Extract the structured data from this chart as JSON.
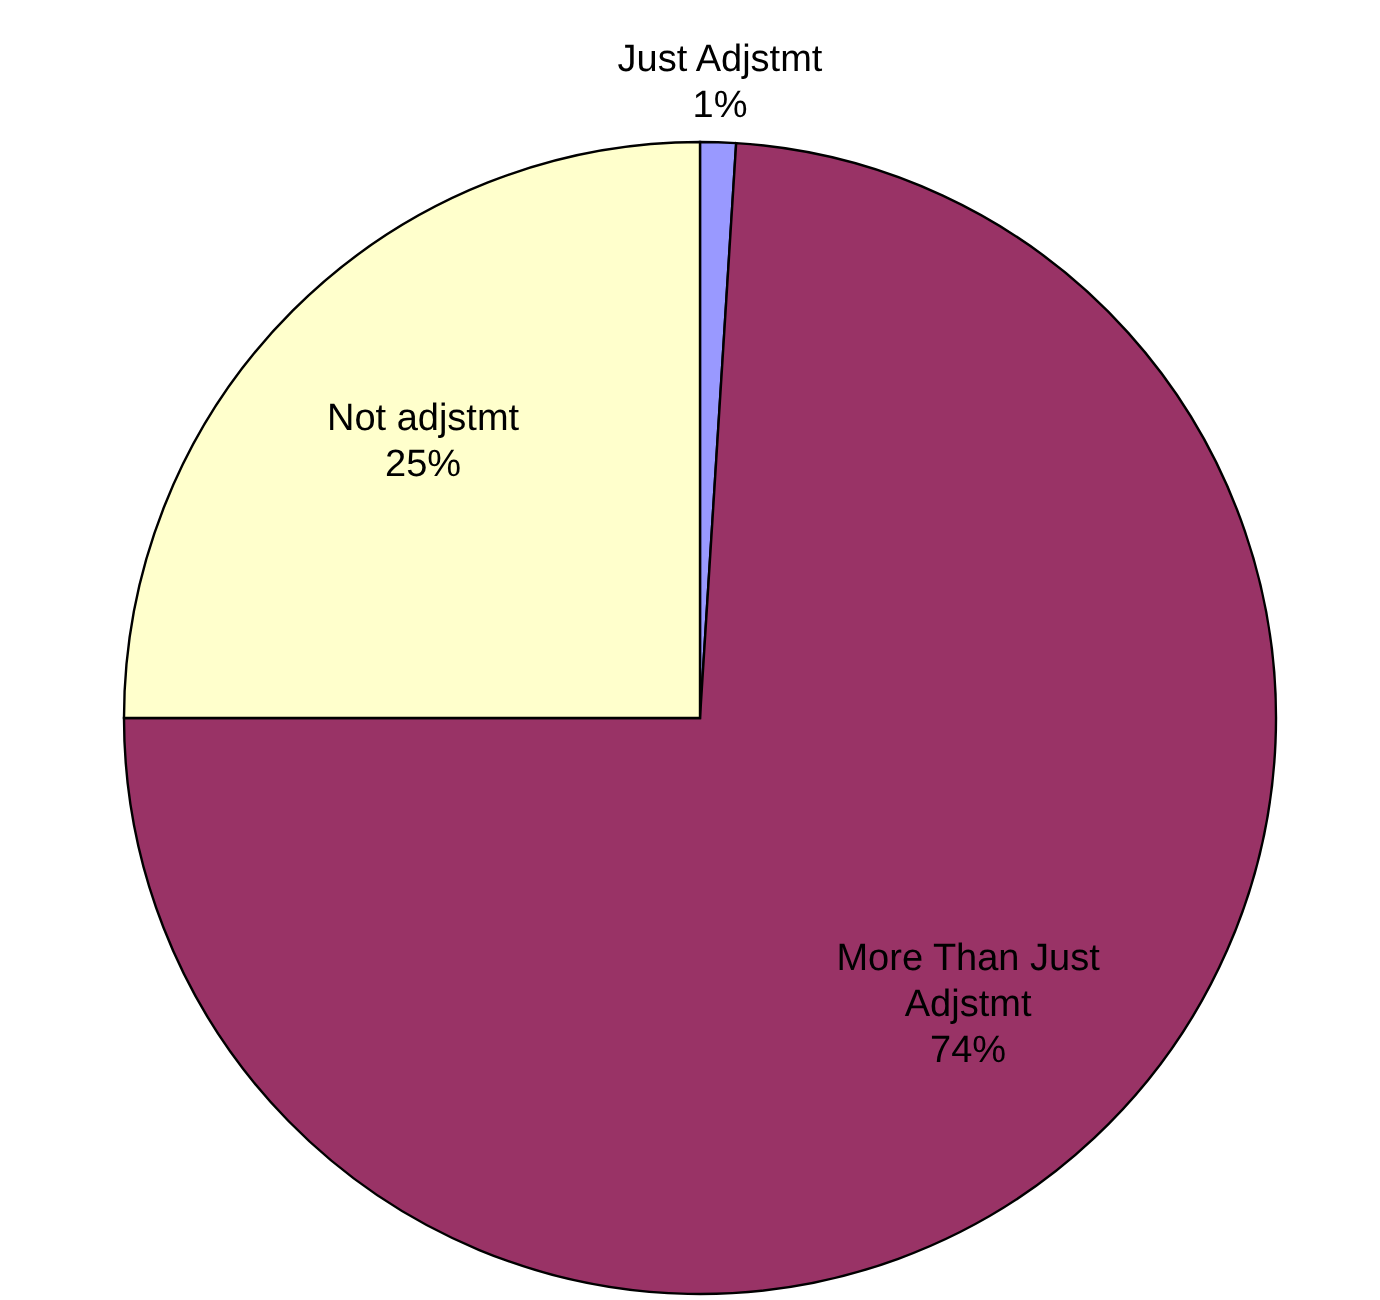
{
  "chart_data": {
    "type": "pie",
    "categories": [
      "Just Adjstmt",
      "More Than Just Adjstmt",
      "Not adjstmt"
    ],
    "values": [
      1,
      74,
      25
    ],
    "value_labels": [
      "1%",
      "74%",
      "25%"
    ],
    "colors": [
      "#9999ff",
      "#993366",
      "#ffffcc"
    ],
    "legend": false
  }
}
